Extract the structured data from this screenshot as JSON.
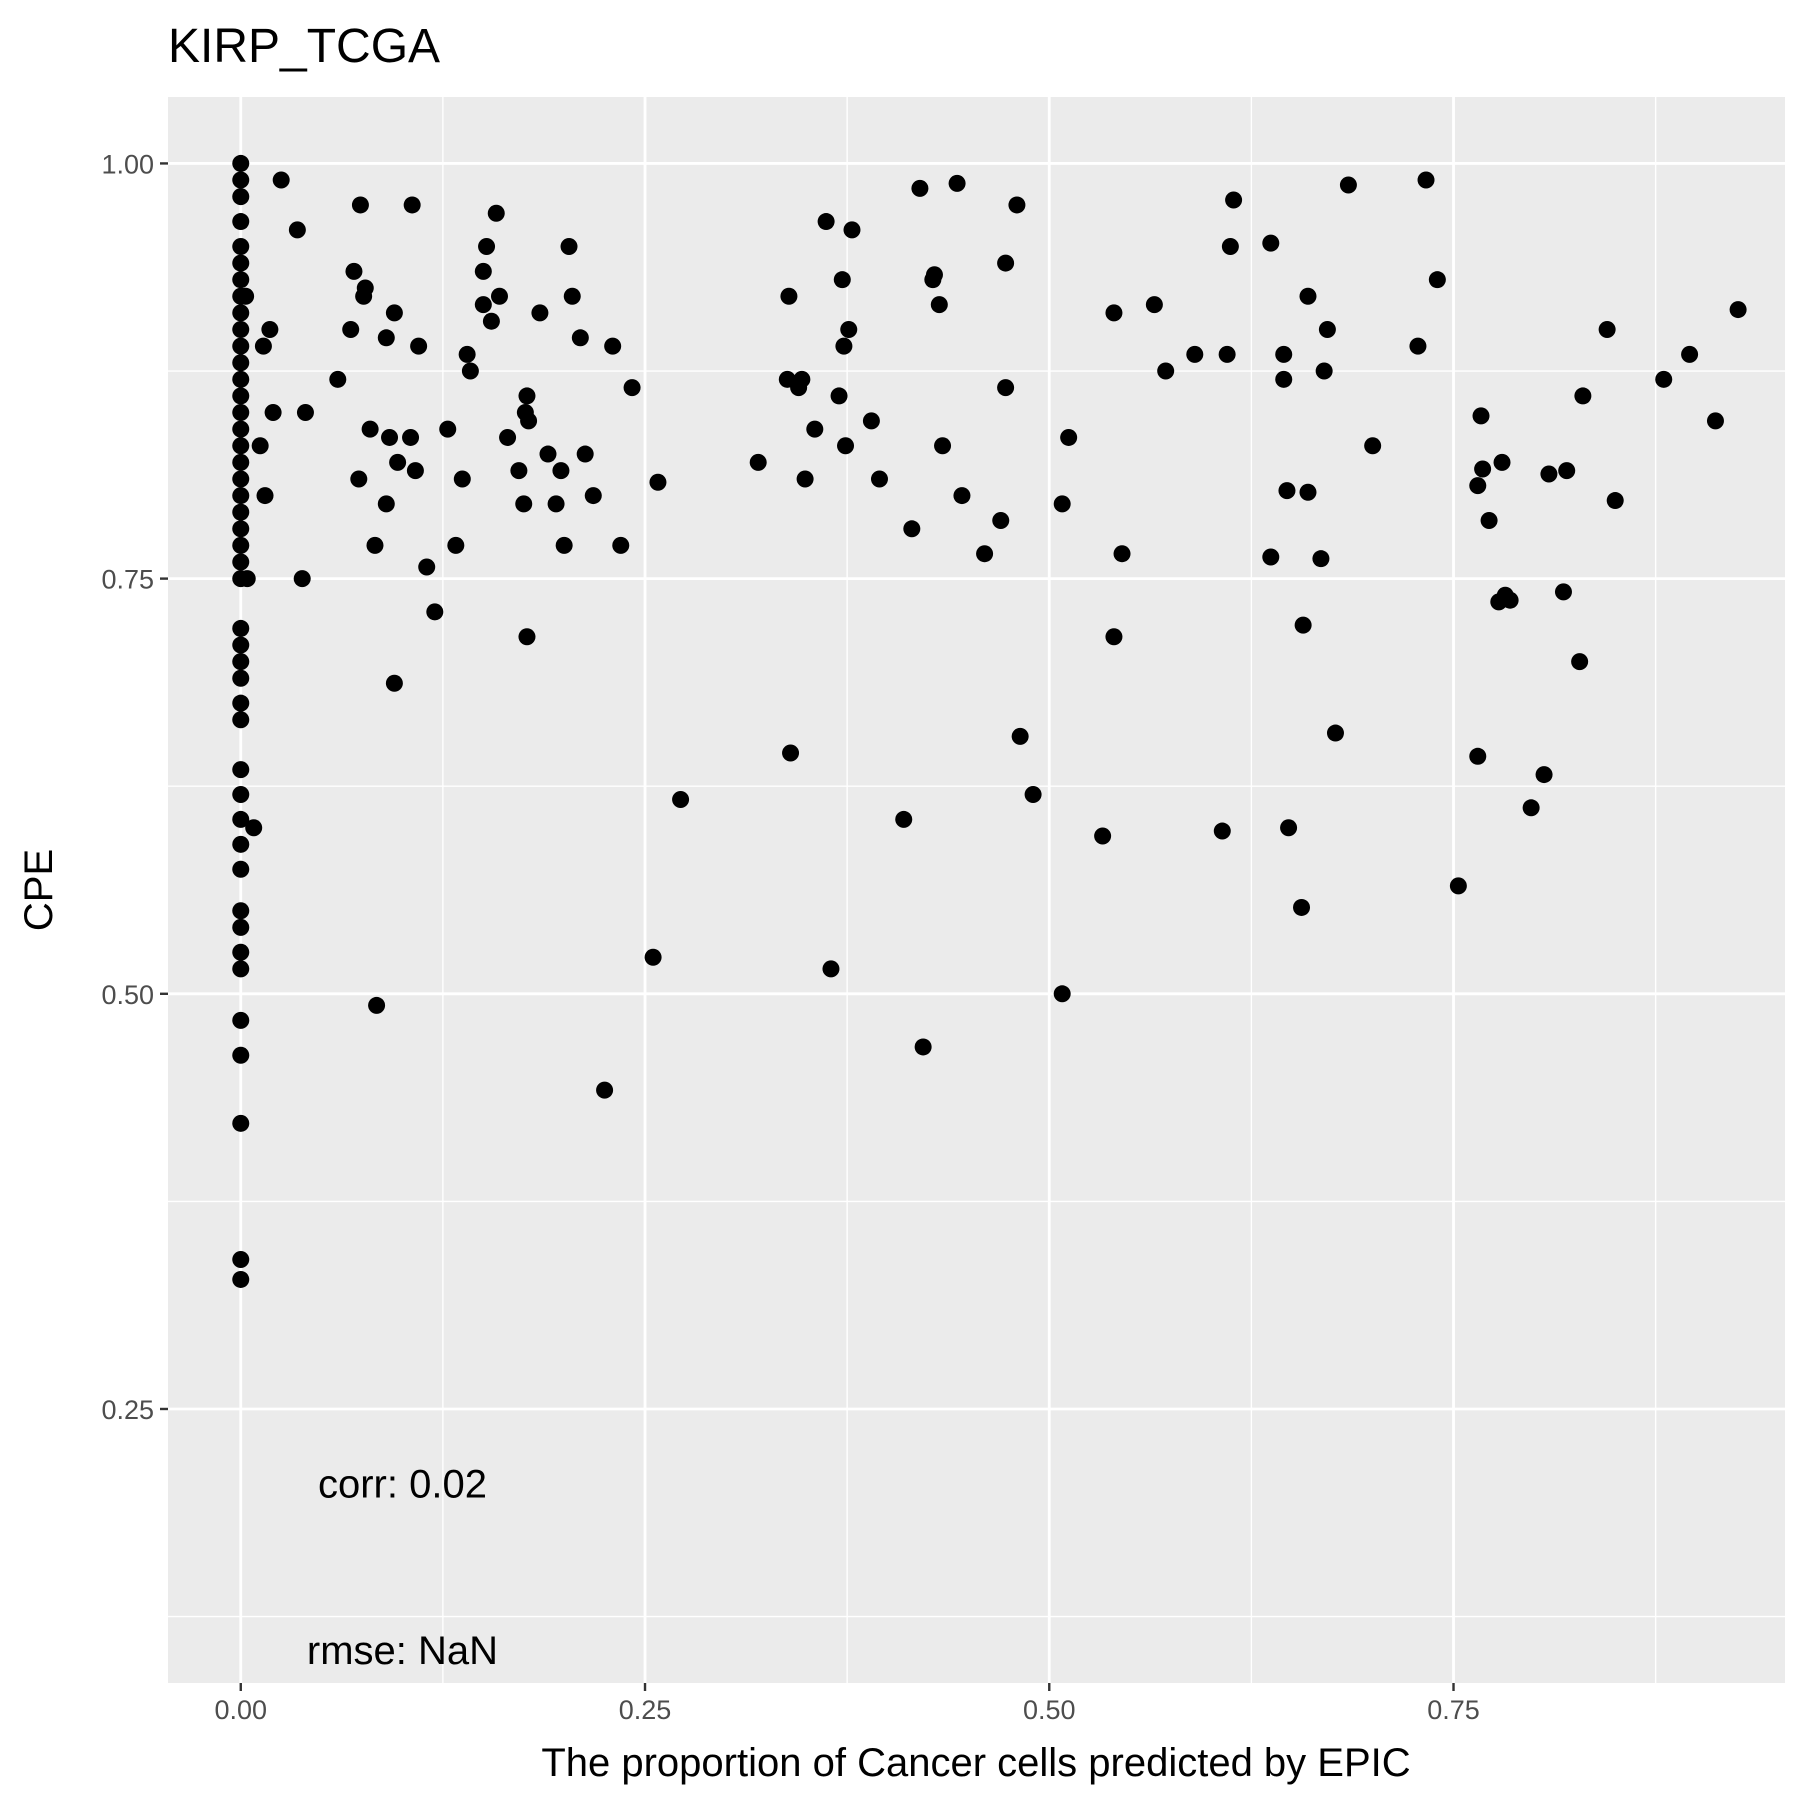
{
  "chart_data": {
    "type": "scatter",
    "title": "KIRP_TCGA",
    "xlabel": "The proportion of Cancer cells predicted by EPIC",
    "ylabel": "CPE",
    "xlim": [
      -0.045,
      0.955
    ],
    "ylim": [
      0.085,
      1.04
    ],
    "x_ticks": [
      0,
      0.25,
      0.5,
      0.75
    ],
    "x_tick_labels": [
      "0.00",
      "0.25",
      "0.50",
      "0.75"
    ],
    "y_ticks": [
      0.25,
      0.5,
      0.75,
      1.0
    ],
    "y_tick_labels": [
      "0.25",
      "0.50",
      "0.75",
      "1.00"
    ],
    "grid": true,
    "annotations": [
      {
        "text": "corr: 0.02",
        "x": 0.1,
        "y": 0.205
      },
      {
        "text": "rmse: NaN",
        "x": 0.1,
        "y": 0.105
      }
    ],
    "colors": {
      "panel": "#ebebeb",
      "grid": "#ffffff",
      "point": "#000000"
    },
    "points": [
      [
        0,
        1.0
      ],
      [
        0,
        0.99
      ],
      [
        0,
        0.98
      ],
      [
        0,
        0.965
      ],
      [
        0,
        0.95
      ],
      [
        0,
        0.94
      ],
      [
        0,
        0.93
      ],
      [
        0,
        0.92
      ],
      [
        0,
        0.91
      ],
      [
        0,
        0.9
      ],
      [
        0,
        0.89
      ],
      [
        0,
        0.88
      ],
      [
        0,
        0.87
      ],
      [
        0,
        0.86
      ],
      [
        0,
        0.85
      ],
      [
        0,
        0.84
      ],
      [
        0,
        0.83
      ],
      [
        0,
        0.82
      ],
      [
        0,
        0.81
      ],
      [
        0,
        0.8
      ],
      [
        0,
        0.79
      ],
      [
        0,
        0.78
      ],
      [
        0,
        0.77
      ],
      [
        0,
        0.76
      ],
      [
        0,
        0.75
      ],
      [
        0,
        0.72
      ],
      [
        0,
        0.71
      ],
      [
        0,
        0.7
      ],
      [
        0,
        0.69
      ],
      [
        0,
        0.675
      ],
      [
        0,
        0.665
      ],
      [
        0,
        0.635
      ],
      [
        0,
        0.62
      ],
      [
        0,
        0.605
      ],
      [
        0,
        0.59
      ],
      [
        0,
        0.575
      ],
      [
        0,
        0.55
      ],
      [
        0,
        0.54
      ],
      [
        0,
        0.525
      ],
      [
        0,
        0.515
      ],
      [
        0,
        0.484
      ],
      [
        0,
        0.463
      ],
      [
        0,
        0.422
      ],
      [
        0,
        0.34
      ],
      [
        0,
        0.328
      ],
      [
        0.003,
        0.92
      ],
      [
        0.004,
        0.75
      ],
      [
        0.008,
        0.6
      ],
      [
        0.012,
        0.83
      ],
      [
        0.014,
        0.89
      ],
      [
        0.015,
        0.8
      ],
      [
        0.018,
        0.9
      ],
      [
        0.02,
        0.85
      ],
      [
        0.025,
        0.99
      ],
      [
        0.035,
        0.96
      ],
      [
        0.038,
        0.75
      ],
      [
        0.04,
        0.85
      ],
      [
        0.06,
        0.87
      ],
      [
        0.068,
        0.9
      ],
      [
        0.07,
        0.935
      ],
      [
        0.073,
        0.81
      ],
      [
        0.074,
        0.975
      ],
      [
        0.076,
        0.92
      ],
      [
        0.077,
        0.925
      ],
      [
        0.08,
        0.84
      ],
      [
        0.083,
        0.77
      ],
      [
        0.084,
        0.493
      ],
      [
        0.09,
        0.895
      ],
      [
        0.092,
        0.835
      ],
      [
        0.09,
        0.795
      ],
      [
        0.095,
        0.91
      ],
      [
        0.095,
        0.687
      ],
      [
        0.097,
        0.82
      ],
      [
        0.105,
        0.835
      ],
      [
        0.106,
        0.975
      ],
      [
        0.108,
        0.815
      ],
      [
        0.11,
        0.89
      ],
      [
        0.115,
        0.757
      ],
      [
        0.12,
        0.73
      ],
      [
        0.128,
        0.84
      ],
      [
        0.133,
        0.77
      ],
      [
        0.137,
        0.81
      ],
      [
        0.14,
        0.885
      ],
      [
        0.142,
        0.875
      ],
      [
        0.15,
        0.915
      ],
      [
        0.15,
        0.935
      ],
      [
        0.152,
        0.95
      ],
      [
        0.155,
        0.905
      ],
      [
        0.158,
        0.97
      ],
      [
        0.16,
        0.92
      ],
      [
        0.165,
        0.835
      ],
      [
        0.172,
        0.815
      ],
      [
        0.175,
        0.795
      ],
      [
        0.176,
        0.85
      ],
      [
        0.177,
        0.86
      ],
      [
        0.178,
        0.845
      ],
      [
        0.177,
        0.715
      ],
      [
        0.185,
        0.91
      ],
      [
        0.19,
        0.825
      ],
      [
        0.195,
        0.795
      ],
      [
        0.198,
        0.815
      ],
      [
        0.2,
        0.77
      ],
      [
        0.203,
        0.95
      ],
      [
        0.205,
        0.92
      ],
      [
        0.21,
        0.895
      ],
      [
        0.213,
        0.825
      ],
      [
        0.218,
        0.8
      ],
      [
        0.225,
        0.442
      ],
      [
        0.23,
        0.89
      ],
      [
        0.235,
        0.77
      ],
      [
        0.242,
        0.865
      ],
      [
        0.255,
        0.522
      ],
      [
        0.258,
        0.808
      ],
      [
        0.272,
        0.617
      ],
      [
        0.32,
        0.82
      ],
      [
        0.338,
        0.87
      ],
      [
        0.339,
        0.92
      ],
      [
        0.34,
        0.645
      ],
      [
        0.345,
        0.865
      ],
      [
        0.347,
        0.87
      ],
      [
        0.349,
        0.81
      ],
      [
        0.355,
        0.84
      ],
      [
        0.362,
        0.965
      ],
      [
        0.365,
        0.515
      ],
      [
        0.37,
        0.86
      ],
      [
        0.372,
        0.93
      ],
      [
        0.373,
        0.89
      ],
      [
        0.374,
        0.83
      ],
      [
        0.376,
        0.9
      ],
      [
        0.378,
        0.96
      ],
      [
        0.39,
        0.845
      ],
      [
        0.395,
        0.81
      ],
      [
        0.41,
        0.605
      ],
      [
        0.415,
        0.78
      ],
      [
        0.42,
        0.985
      ],
      [
        0.422,
        0.468
      ],
      [
        0.428,
        0.93
      ],
      [
        0.429,
        0.933
      ],
      [
        0.432,
        0.915
      ],
      [
        0.434,
        0.83
      ],
      [
        0.443,
        0.988
      ],
      [
        0.446,
        0.8
      ],
      [
        0.46,
        0.765
      ],
      [
        0.47,
        0.785
      ],
      [
        0.473,
        0.94
      ],
      [
        0.473,
        0.865
      ],
      [
        0.48,
        0.975
      ],
      [
        0.482,
        0.655
      ],
      [
        0.49,
        0.62
      ],
      [
        0.508,
        0.795
      ],
      [
        0.508,
        0.5
      ],
      [
        0.512,
        0.835
      ],
      [
        0.533,
        0.595
      ],
      [
        0.54,
        0.715
      ],
      [
        0.54,
        0.91
      ],
      [
        0.545,
        0.765
      ],
      [
        0.565,
        0.915
      ],
      [
        0.572,
        0.875
      ],
      [
        0.59,
        0.885
      ],
      [
        0.607,
        0.598
      ],
      [
        0.61,
        0.885
      ],
      [
        0.612,
        0.95
      ],
      [
        0.614,
        0.978
      ],
      [
        0.637,
        0.952
      ],
      [
        0.637,
        0.763
      ],
      [
        0.645,
        0.87
      ],
      [
        0.645,
        0.885
      ],
      [
        0.647,
        0.803
      ],
      [
        0.648,
        0.6
      ],
      [
        0.656,
        0.552
      ],
      [
        0.657,
        0.722
      ],
      [
        0.66,
        0.92
      ],
      [
        0.66,
        0.802
      ],
      [
        0.668,
        0.762
      ],
      [
        0.67,
        0.875
      ],
      [
        0.672,
        0.9
      ],
      [
        0.677,
        0.657
      ],
      [
        0.685,
        0.987
      ],
      [
        0.7,
        0.83
      ],
      [
        0.728,
        0.89
      ],
      [
        0.733,
        0.99
      ],
      [
        0.74,
        0.93
      ],
      [
        0.753,
        0.565
      ],
      [
        0.765,
        0.643
      ],
      [
        0.765,
        0.806
      ],
      [
        0.767,
        0.848
      ],
      [
        0.768,
        0.816
      ],
      [
        0.772,
        0.785
      ],
      [
        0.778,
        0.736
      ],
      [
        0.78,
        0.82
      ],
      [
        0.782,
        0.74
      ],
      [
        0.785,
        0.737
      ],
      [
        0.798,
        0.612
      ],
      [
        0.806,
        0.632
      ],
      [
        0.809,
        0.813
      ],
      [
        0.818,
        0.742
      ],
      [
        0.82,
        0.815
      ],
      [
        0.828,
        0.7
      ],
      [
        0.83,
        0.86
      ],
      [
        0.845,
        0.9
      ],
      [
        0.85,
        0.797
      ],
      [
        0.88,
        0.87
      ],
      [
        0.896,
        0.885
      ],
      [
        0.912,
        0.845
      ],
      [
        0.926,
        0.912
      ]
    ]
  }
}
